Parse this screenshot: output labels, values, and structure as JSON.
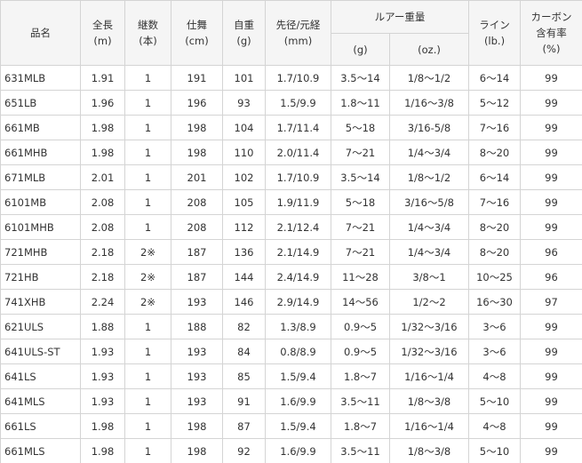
{
  "table": {
    "header": {
      "row1": [
        [
          "品名"
        ],
        [
          "全長",
          "(m)"
        ],
        [
          "継数",
          "(本)"
        ],
        [
          "仕舞",
          "(cm)"
        ],
        [
          "自重",
          "(g)"
        ],
        [
          "先径/元経",
          "(mm)"
        ],
        [
          "ルアー重量"
        ],
        [
          "ライン",
          "(lb.)"
        ],
        [
          "カーボン",
          "含有率",
          "(%)"
        ]
      ],
      "row2": [
        "(g)",
        "(oz.)"
      ]
    },
    "rows": [
      [
        "631MLB",
        "1.91",
        "1",
        "191",
        "101",
        "1.7/10.9",
        "3.5～14",
        "1/8～1/2",
        "6～14",
        "99"
      ],
      [
        "651LB",
        "1.96",
        "1",
        "196",
        "93",
        "1.5/9.9",
        "1.8～11",
        "1/16～3/8",
        "5～12",
        "99"
      ],
      [
        "661MB",
        "1.98",
        "1",
        "198",
        "104",
        "1.7/11.4",
        "5～18",
        "3/16-5/8",
        "7～16",
        "99"
      ],
      [
        "661MHB",
        "1.98",
        "1",
        "198",
        "110",
        "2.0/11.4",
        "7～21",
        "1/4～3/4",
        "8～20",
        "99"
      ],
      [
        "671MLB",
        "2.01",
        "1",
        "201",
        "102",
        "1.7/10.9",
        "3.5～14",
        "1/8～1/2",
        "6～14",
        "99"
      ],
      [
        "6101MB",
        "2.08",
        "1",
        "208",
        "105",
        "1.9/11.9",
        "5～18",
        "3/16～5/8",
        "7～16",
        "99"
      ],
      [
        "6101MHB",
        "2.08",
        "1",
        "208",
        "112",
        "2.1/12.4",
        "7～21",
        "1/4～3/4",
        "8～20",
        "99"
      ],
      [
        "721MHB",
        "2.18",
        "2※",
        "187",
        "136",
        "2.1/14.9",
        "7～21",
        "1/4～3/4",
        "8～20",
        "96"
      ],
      [
        "721HB",
        "2.18",
        "2※",
        "187",
        "144",
        "2.4/14.9",
        "11～28",
        "3/8～1",
        "10～25",
        "96"
      ],
      [
        "741XHB",
        "2.24",
        "2※",
        "193",
        "146",
        "2.9/14.9",
        "14～56",
        "1/2～2",
        "16～30",
        "97"
      ],
      [
        "621ULS",
        "1.88",
        "1",
        "188",
        "82",
        "1.3/8.9",
        "0.9～5",
        "1/32～3/16",
        "3～6",
        "99"
      ],
      [
        "641ULS-ST",
        "1.93",
        "1",
        "193",
        "84",
        "0.8/8.9",
        "0.9～5",
        "1/32～3/16",
        "3～6",
        "99"
      ],
      [
        "641LS",
        "1.93",
        "1",
        "193",
        "85",
        "1.5/9.4",
        "1.8～7",
        "1/16～1/4",
        "4～8",
        "99"
      ],
      [
        "641MLS",
        "1.93",
        "1",
        "193",
        "91",
        "1.6/9.9",
        "3.5～11",
        "1/8～3/8",
        "5～10",
        "99"
      ],
      [
        "661LS",
        "1.98",
        "1",
        "198",
        "87",
        "1.5/9.4",
        "1.8～7",
        "1/16～1/4",
        "4～8",
        "99"
      ],
      [
        "661MLS",
        "1.98",
        "1",
        "198",
        "92",
        "1.6/9.9",
        "3.5～11",
        "1/8～3/8",
        "5～10",
        "99"
      ]
    ]
  }
}
